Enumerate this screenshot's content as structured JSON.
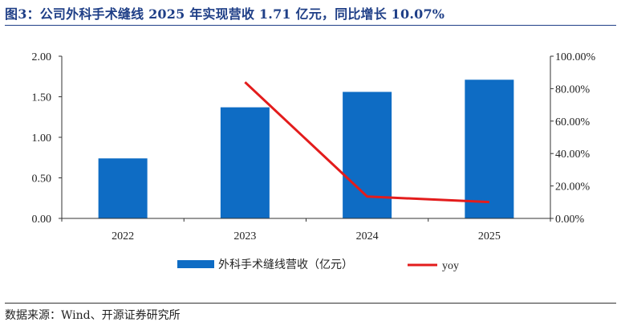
{
  "header": {
    "title": "图3：公司外科手术缝线 2025 年实现营收 1.71 亿元，同比增长 10.07%"
  },
  "footer": {
    "source": "数据来源：Wind、开源证券研究所"
  },
  "colors": {
    "bar": "#0e6cc4",
    "line": "#e31c1c",
    "title": "#1f3f87"
  },
  "chart_data": {
    "type": "bar",
    "categories": [
      "2022",
      "2023",
      "2024",
      "2025"
    ],
    "series": [
      {
        "name": "外科手术缝线营收（亿元）",
        "kind": "bar",
        "axis": "left",
        "values": [
          0.74,
          1.37,
          1.56,
          1.71
        ]
      },
      {
        "name": "yoy",
        "kind": "line",
        "axis": "right",
        "values": [
          null,
          84.0,
          13.5,
          10.07
        ]
      }
    ],
    "y_left": {
      "min": 0,
      "max": 2,
      "ticks": [
        "0.00",
        "0.50",
        "1.00",
        "1.50",
        "2.00"
      ]
    },
    "y_right": {
      "min": 0,
      "max": 100,
      "ticks": [
        "0.00%",
        "20.00%",
        "40.00%",
        "60.00%",
        "80.00%",
        "100.00%"
      ]
    },
    "grid": false,
    "legend_position": "bottom"
  }
}
